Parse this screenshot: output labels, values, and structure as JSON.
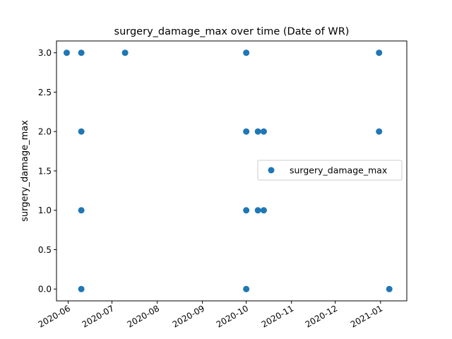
{
  "chart_data": {
    "type": "scatter",
    "title": "surgery_damage_max over time (Date of WR)",
    "xlabel": "",
    "ylabel": "surgery_damage_max",
    "x_type": "date",
    "xlim": [
      "2020-05-24",
      "2021-01-19"
    ],
    "ylim": [
      -0.15,
      3.15
    ],
    "x_ticks": [
      "2020-06-01",
      "2020-07-01",
      "2020-08-01",
      "2020-09-01",
      "2020-10-01",
      "2020-11-01",
      "2020-12-01",
      "2021-01-01"
    ],
    "x_tick_labels": [
      "2020-06",
      "2020-07",
      "2020-08",
      "2020-09",
      "2020-10",
      "2020-11",
      "2020-12",
      "2021-01"
    ],
    "y_ticks": [
      0.0,
      0.5,
      1.0,
      1.5,
      2.0,
      2.5,
      3.0
    ],
    "y_tick_labels": [
      "0.0",
      "0.5",
      "1.0",
      "1.5",
      "2.0",
      "2.5",
      "3.0"
    ],
    "grid": false,
    "legend_position": "center-right",
    "color": "#1f77b4",
    "series": [
      {
        "name": "surgery_damage_max",
        "points": [
          {
            "x": "2020-05-31",
            "y": 3
          },
          {
            "x": "2020-06-10",
            "y": 3
          },
          {
            "x": "2020-06-10",
            "y": 2
          },
          {
            "x": "2020-06-10",
            "y": 1
          },
          {
            "x": "2020-06-10",
            "y": 0
          },
          {
            "x": "2020-07-10",
            "y": 3
          },
          {
            "x": "2020-10-01",
            "y": 3
          },
          {
            "x": "2020-10-01",
            "y": 2
          },
          {
            "x": "2020-10-01",
            "y": 1
          },
          {
            "x": "2020-10-01",
            "y": 0
          },
          {
            "x": "2020-10-09",
            "y": 2
          },
          {
            "x": "2020-10-09",
            "y": 1
          },
          {
            "x": "2020-10-13",
            "y": 2
          },
          {
            "x": "2020-10-13",
            "y": 1
          },
          {
            "x": "2020-12-31",
            "y": 3
          },
          {
            "x": "2020-12-31",
            "y": 2
          },
          {
            "x": "2021-01-07",
            "y": 0
          }
        ]
      }
    ]
  }
}
